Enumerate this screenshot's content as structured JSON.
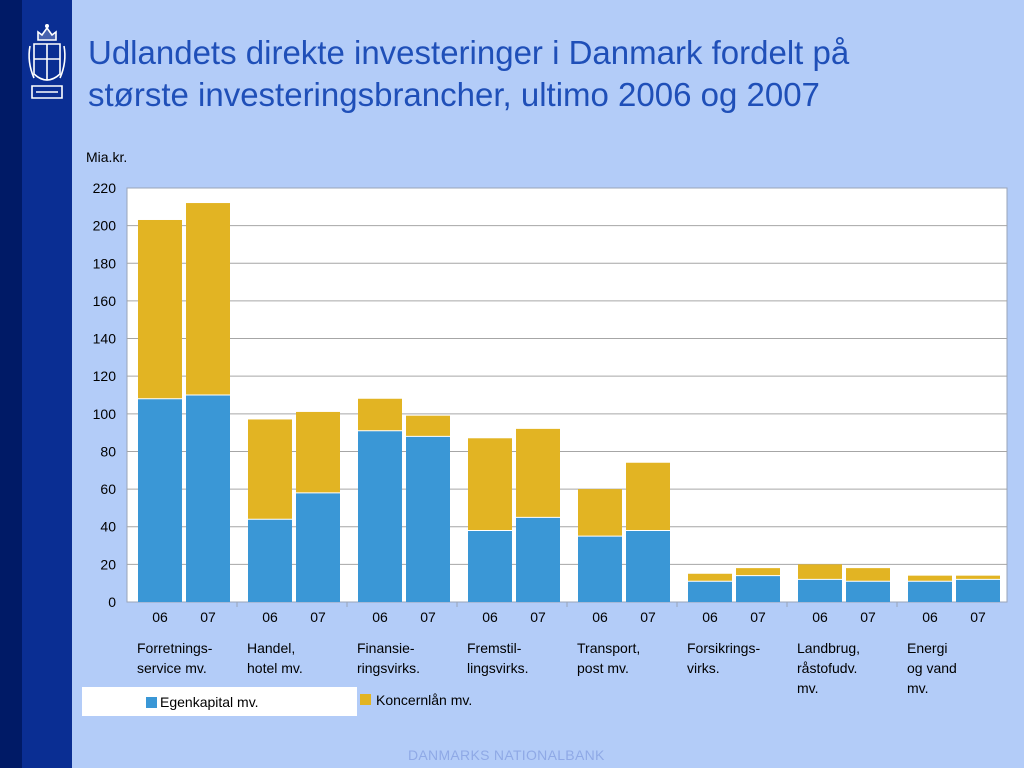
{
  "slide": {
    "title_line1": "Udlandets direkte investeringer i Danmark fordelt på",
    "title_line2": "største investeringsbrancher, ultimo 2006 og 2007",
    "footer": "DANMARKS NATIONALBANK",
    "colors": {
      "background": "#b3ccf8",
      "sidebar": "#001a66",
      "title": "#1f4fb8"
    }
  },
  "chart_data": {
    "type": "bar",
    "stacked": true,
    "ylabel": "Mia.kr.",
    "ylim": [
      0,
      220
    ],
    "yticks": [
      0,
      20,
      40,
      60,
      80,
      100,
      120,
      140,
      160,
      180,
      200,
      220
    ],
    "grid": true,
    "groups": [
      {
        "label_lines": [
          "Forretnings-",
          "service mv."
        ],
        "years": [
          "06",
          "07"
        ]
      },
      {
        "label_lines": [
          "Handel,",
          "hotel mv."
        ],
        "years": [
          "06",
          "07"
        ]
      },
      {
        "label_lines": [
          "Finansie-",
          "ringsvirks."
        ],
        "years": [
          "06",
          "07"
        ]
      },
      {
        "label_lines": [
          "Fremstil-",
          "lingsvirks."
        ],
        "years": [
          "06",
          "07"
        ]
      },
      {
        "label_lines": [
          "Transport,",
          "post mv."
        ],
        "years": [
          "06",
          "07"
        ]
      },
      {
        "label_lines": [
          "Forsikrings-",
          "virks."
        ],
        "years": [
          "06",
          "07"
        ]
      },
      {
        "label_lines": [
          "Landbrug,",
          "råstofudv.",
          "mv."
        ],
        "years": [
          "06",
          "07"
        ]
      },
      {
        "label_lines": [
          "Energi",
          "og vand",
          "mv."
        ],
        "years": [
          "06",
          "07"
        ]
      }
    ],
    "series": [
      {
        "name": "Egenkapital mv.",
        "color": "#3a97d6",
        "values": [
          108,
          110,
          44,
          58,
          91,
          88,
          38,
          45,
          35,
          38,
          11,
          14,
          12,
          11,
          11,
          12
        ]
      },
      {
        "name": "Koncernlån mv.",
        "color": "#e2b423",
        "values": [
          95,
          102,
          53,
          43,
          17,
          11,
          49,
          47,
          25,
          36,
          4,
          4,
          8,
          7,
          3,
          2
        ]
      }
    ],
    "legend_position": "bottom-left"
  }
}
